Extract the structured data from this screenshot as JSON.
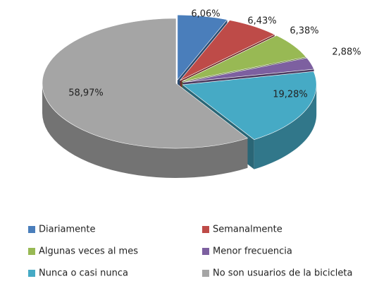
{
  "chart_data": {
    "type": "pie",
    "categories": [
      "Diariamente",
      "Semanalmente",
      "Algunas veces al mes",
      "Menor frecuencia",
      "Nunca o casi nunca",
      "No son usuarios de la bicicleta"
    ],
    "values": [
      6.06,
      6.43,
      6.38,
      2.88,
      19.28,
      58.97
    ],
    "value_labels": [
      "6,06%",
      "6,43%",
      "6,38%",
      "2,88%",
      "19,28%",
      "58,97%"
    ],
    "colors": [
      "#4a7ebb",
      "#be4b48",
      "#98b954",
      "#7d60a0",
      "#46aac5",
      "#a5a5a5"
    ]
  }
}
